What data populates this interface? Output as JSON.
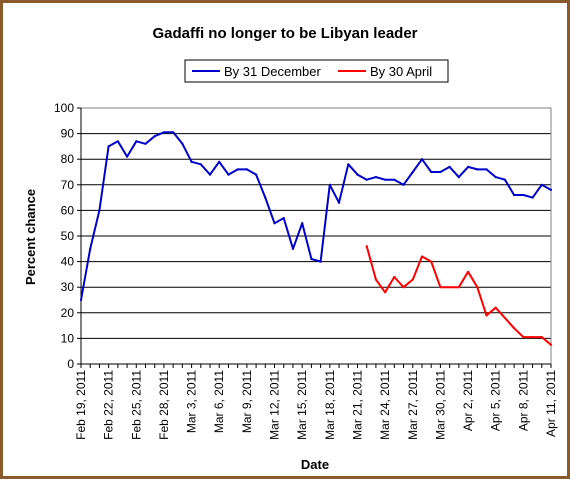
{
  "chart_data": {
    "type": "line",
    "title": "Gadaffi no longer to be Libyan leader",
    "xlabel": "Date",
    "ylabel": "Percent chance",
    "ylim": [
      0,
      100
    ],
    "yticks": [
      0,
      10,
      20,
      30,
      40,
      50,
      60,
      70,
      80,
      90,
      100
    ],
    "xlim": [
      "2011-02-19",
      "2011-04-11"
    ],
    "xtick_labels": [
      "Feb 19, 2011",
      "Feb 22, 2011",
      "Feb 25, 2011",
      "Feb 28, 2011",
      "Mar 3, 2011",
      "Mar 6, 2011",
      "Mar 9, 2011",
      "Mar 12, 2011",
      "Mar 15, 2011",
      "Mar 18, 2011",
      "Mar 21, 2011",
      "Mar 24, 2011",
      "Mar 27, 2011",
      "Mar 30, 2011",
      "Apr 2, 2011",
      "Apr 5, 2011",
      "Apr 8, 2011",
      "Apr 11, 2011"
    ],
    "grid": "horizontal",
    "legend_position": "top",
    "series": [
      {
        "name": "By 31 December",
        "color": "#0000cc",
        "points": [
          [
            "2011-02-19",
            25
          ],
          [
            "2011-02-20",
            45
          ],
          [
            "2011-02-21",
            60
          ],
          [
            "2011-02-22",
            85
          ],
          [
            "2011-02-23",
            87
          ],
          [
            "2011-02-24",
            81
          ],
          [
            "2011-02-25",
            87
          ],
          [
            "2011-02-26",
            86
          ],
          [
            "2011-02-27",
            89
          ],
          [
            "2011-02-28",
            90.5
          ],
          [
            "2011-03-01",
            90.5
          ],
          [
            "2011-03-02",
            86
          ],
          [
            "2011-03-03",
            79
          ],
          [
            "2011-03-04",
            78
          ],
          [
            "2011-03-05",
            74
          ],
          [
            "2011-03-06",
            79
          ],
          [
            "2011-03-07",
            74
          ],
          [
            "2011-03-08",
            76
          ],
          [
            "2011-03-09",
            76
          ],
          [
            "2011-03-10",
            74
          ],
          [
            "2011-03-11",
            65
          ],
          [
            "2011-03-12",
            55
          ],
          [
            "2011-03-13",
            57
          ],
          [
            "2011-03-14",
            45
          ],
          [
            "2011-03-15",
            55
          ],
          [
            "2011-03-16",
            41
          ],
          [
            "2011-03-17",
            40
          ],
          [
            "2011-03-18",
            70
          ],
          [
            "2011-03-19",
            63
          ],
          [
            "2011-03-20",
            78
          ],
          [
            "2011-03-21",
            74
          ],
          [
            "2011-03-22",
            72
          ],
          [
            "2011-03-23",
            73
          ],
          [
            "2011-03-24",
            72
          ],
          [
            "2011-03-25",
            72
          ],
          [
            "2011-03-26",
            70
          ],
          [
            "2011-03-27",
            75
          ],
          [
            "2011-03-28",
            80
          ],
          [
            "2011-03-29",
            75
          ],
          [
            "2011-03-30",
            75
          ],
          [
            "2011-03-31",
            77
          ],
          [
            "2011-04-01",
            73
          ],
          [
            "2011-04-02",
            77
          ],
          [
            "2011-04-03",
            76
          ],
          [
            "2011-04-04",
            76
          ],
          [
            "2011-04-05",
            73
          ],
          [
            "2011-04-06",
            72
          ],
          [
            "2011-04-07",
            66
          ],
          [
            "2011-04-08",
            66
          ],
          [
            "2011-04-09",
            65
          ],
          [
            "2011-04-10",
            70
          ],
          [
            "2011-04-11",
            68
          ]
        ]
      },
      {
        "name": "By 30 April",
        "color": "#ff0000",
        "points": [
          [
            "2011-03-22",
            46
          ],
          [
            "2011-03-23",
            33
          ],
          [
            "2011-03-24",
            28
          ],
          [
            "2011-03-25",
            34
          ],
          [
            "2011-03-26",
            30
          ],
          [
            "2011-03-27",
            33
          ],
          [
            "2011-03-28",
            42
          ],
          [
            "2011-03-29",
            40
          ],
          [
            "2011-03-30",
            30
          ],
          [
            "2011-03-31",
            30
          ],
          [
            "2011-04-01",
            30
          ],
          [
            "2011-04-02",
            36
          ],
          [
            "2011-04-03",
            30
          ],
          [
            "2011-04-04",
            19
          ],
          [
            "2011-04-05",
            22
          ],
          [
            "2011-04-06",
            18
          ],
          [
            "2011-04-07",
            14
          ],
          [
            "2011-04-08",
            10.5
          ],
          [
            "2011-04-09",
            10.5
          ],
          [
            "2011-04-10",
            10.5
          ],
          [
            "2011-04-11",
            7.5
          ]
        ]
      }
    ]
  }
}
